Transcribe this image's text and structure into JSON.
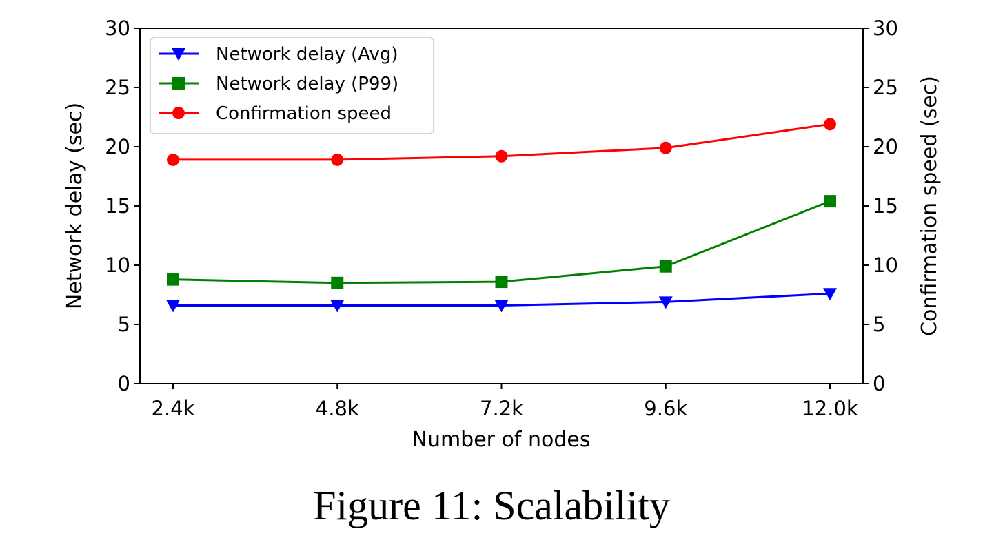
{
  "chart_data": {
    "type": "line",
    "categories": [
      "2.4k",
      "4.8k",
      "7.2k",
      "9.6k",
      "12.0k"
    ],
    "xlabel": "Number of nodes",
    "ylabel": "Network delay (sec)",
    "ylabel_right": "Confirmation speed (sec)",
    "ylim": [
      0,
      30
    ],
    "ylim_right": [
      0,
      30
    ],
    "yticks": [
      0,
      5,
      10,
      15,
      20,
      25,
      30
    ],
    "grid": false,
    "legend_position": "top-left",
    "series": [
      {
        "name": "Network delay (Avg)",
        "color": "#0000ff",
        "marker": "triangle-down",
        "values": [
          6.6,
          6.6,
          6.6,
          6.9,
          7.6
        ]
      },
      {
        "name": "Network delay (P99)",
        "color": "#008000",
        "marker": "square",
        "values": [
          8.8,
          8.5,
          8.6,
          9.9,
          15.4
        ]
      },
      {
        "name": "Confirmation speed",
        "color": "#ff0000",
        "marker": "circle",
        "values": [
          18.9,
          18.9,
          19.2,
          19.9,
          21.9
        ]
      }
    ]
  },
  "caption": "Figure 11: Scalability"
}
